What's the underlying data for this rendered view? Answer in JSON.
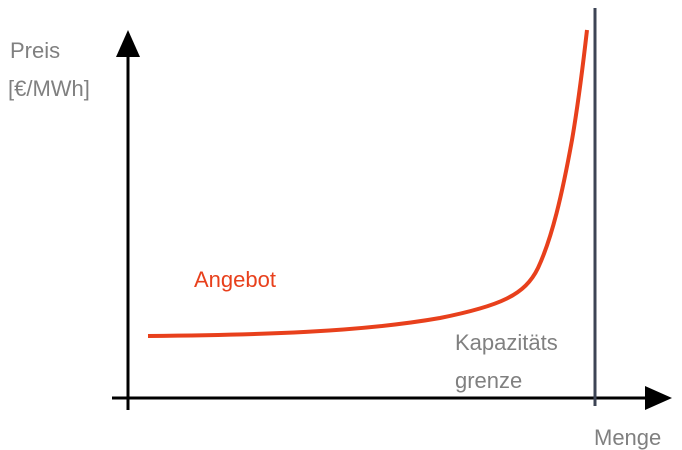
{
  "y_axis_label": [
    "Preis",
    "[€/MWh]"
  ],
  "x_axis_label": "Menge",
  "curve_label": "Angebot",
  "capacity_label": [
    "Kapazitäts",
    "grenze"
  ]
}
